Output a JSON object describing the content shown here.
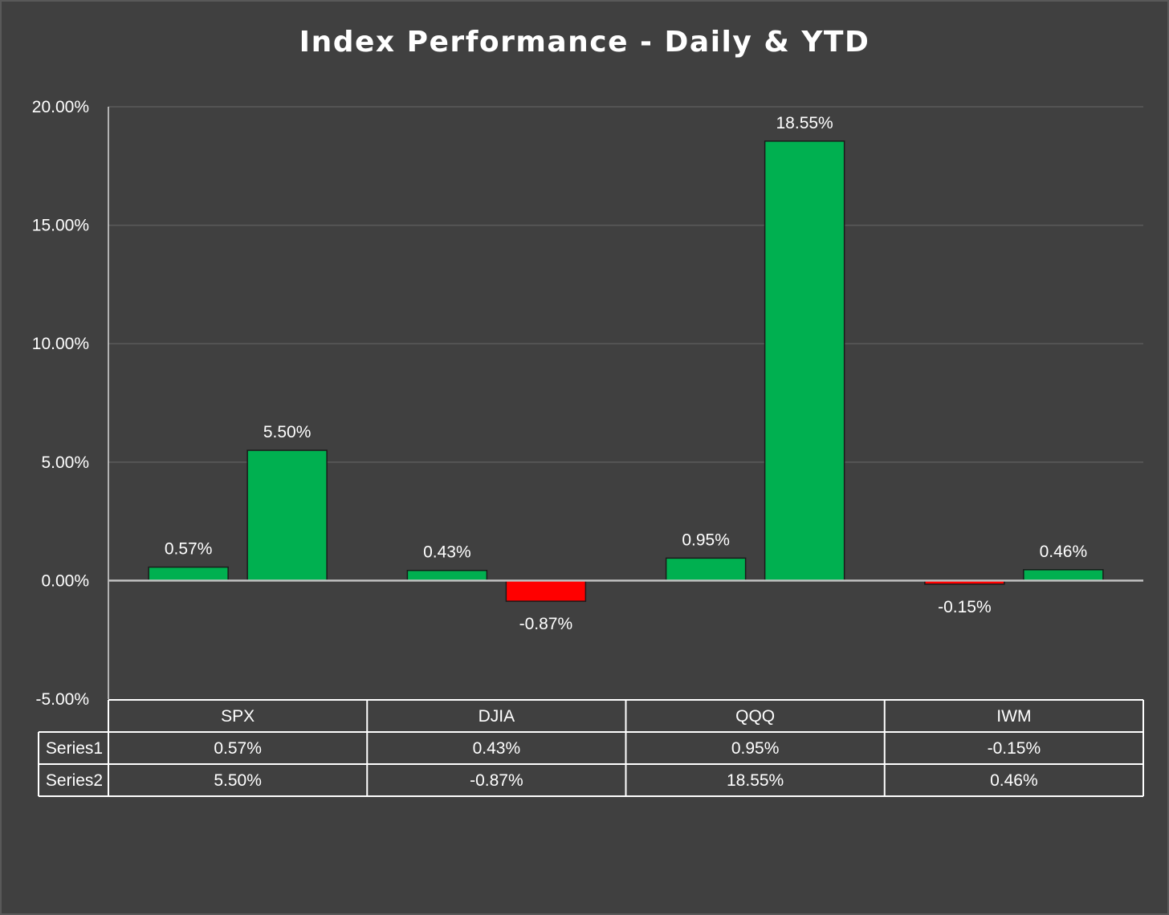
{
  "chart_data": {
    "type": "bar",
    "title": "Index Performance - Daily & YTD",
    "categories": [
      "SPX",
      "DJIA",
      "QQQ",
      "IWM"
    ],
    "series": [
      {
        "name": "Series1",
        "values": [
          0.57,
          0.43,
          0.95,
          -0.15
        ],
        "labels": [
          "0.57%",
          "0.43%",
          "0.95%",
          "-0.15%"
        ]
      },
      {
        "name": "Series2",
        "values": [
          5.5,
          -0.87,
          18.55,
          0.46
        ],
        "labels": [
          "5.50%",
          "-0.87%",
          "18.55%",
          "0.46%"
        ]
      }
    ],
    "y_ticks": [
      {
        "value": 20,
        "label": "20.00%"
      },
      {
        "value": 15,
        "label": "15.00%"
      },
      {
        "value": 10,
        "label": "10.00%"
      },
      {
        "value": 5,
        "label": "5.00%"
      },
      {
        "value": 0,
        "label": "0.00%"
      },
      {
        "value": -5,
        "label": "-5.00%"
      }
    ],
    "ylim": [
      -5,
      20
    ],
    "grid": true,
    "legend": "data-table below chart",
    "colors": {
      "positive": "#00b050",
      "negative": "#ff0000",
      "background": "#404040",
      "grid": "#5a5a5a",
      "zero_line": "#bfbfbf",
      "table_border": "#ffffff"
    }
  }
}
